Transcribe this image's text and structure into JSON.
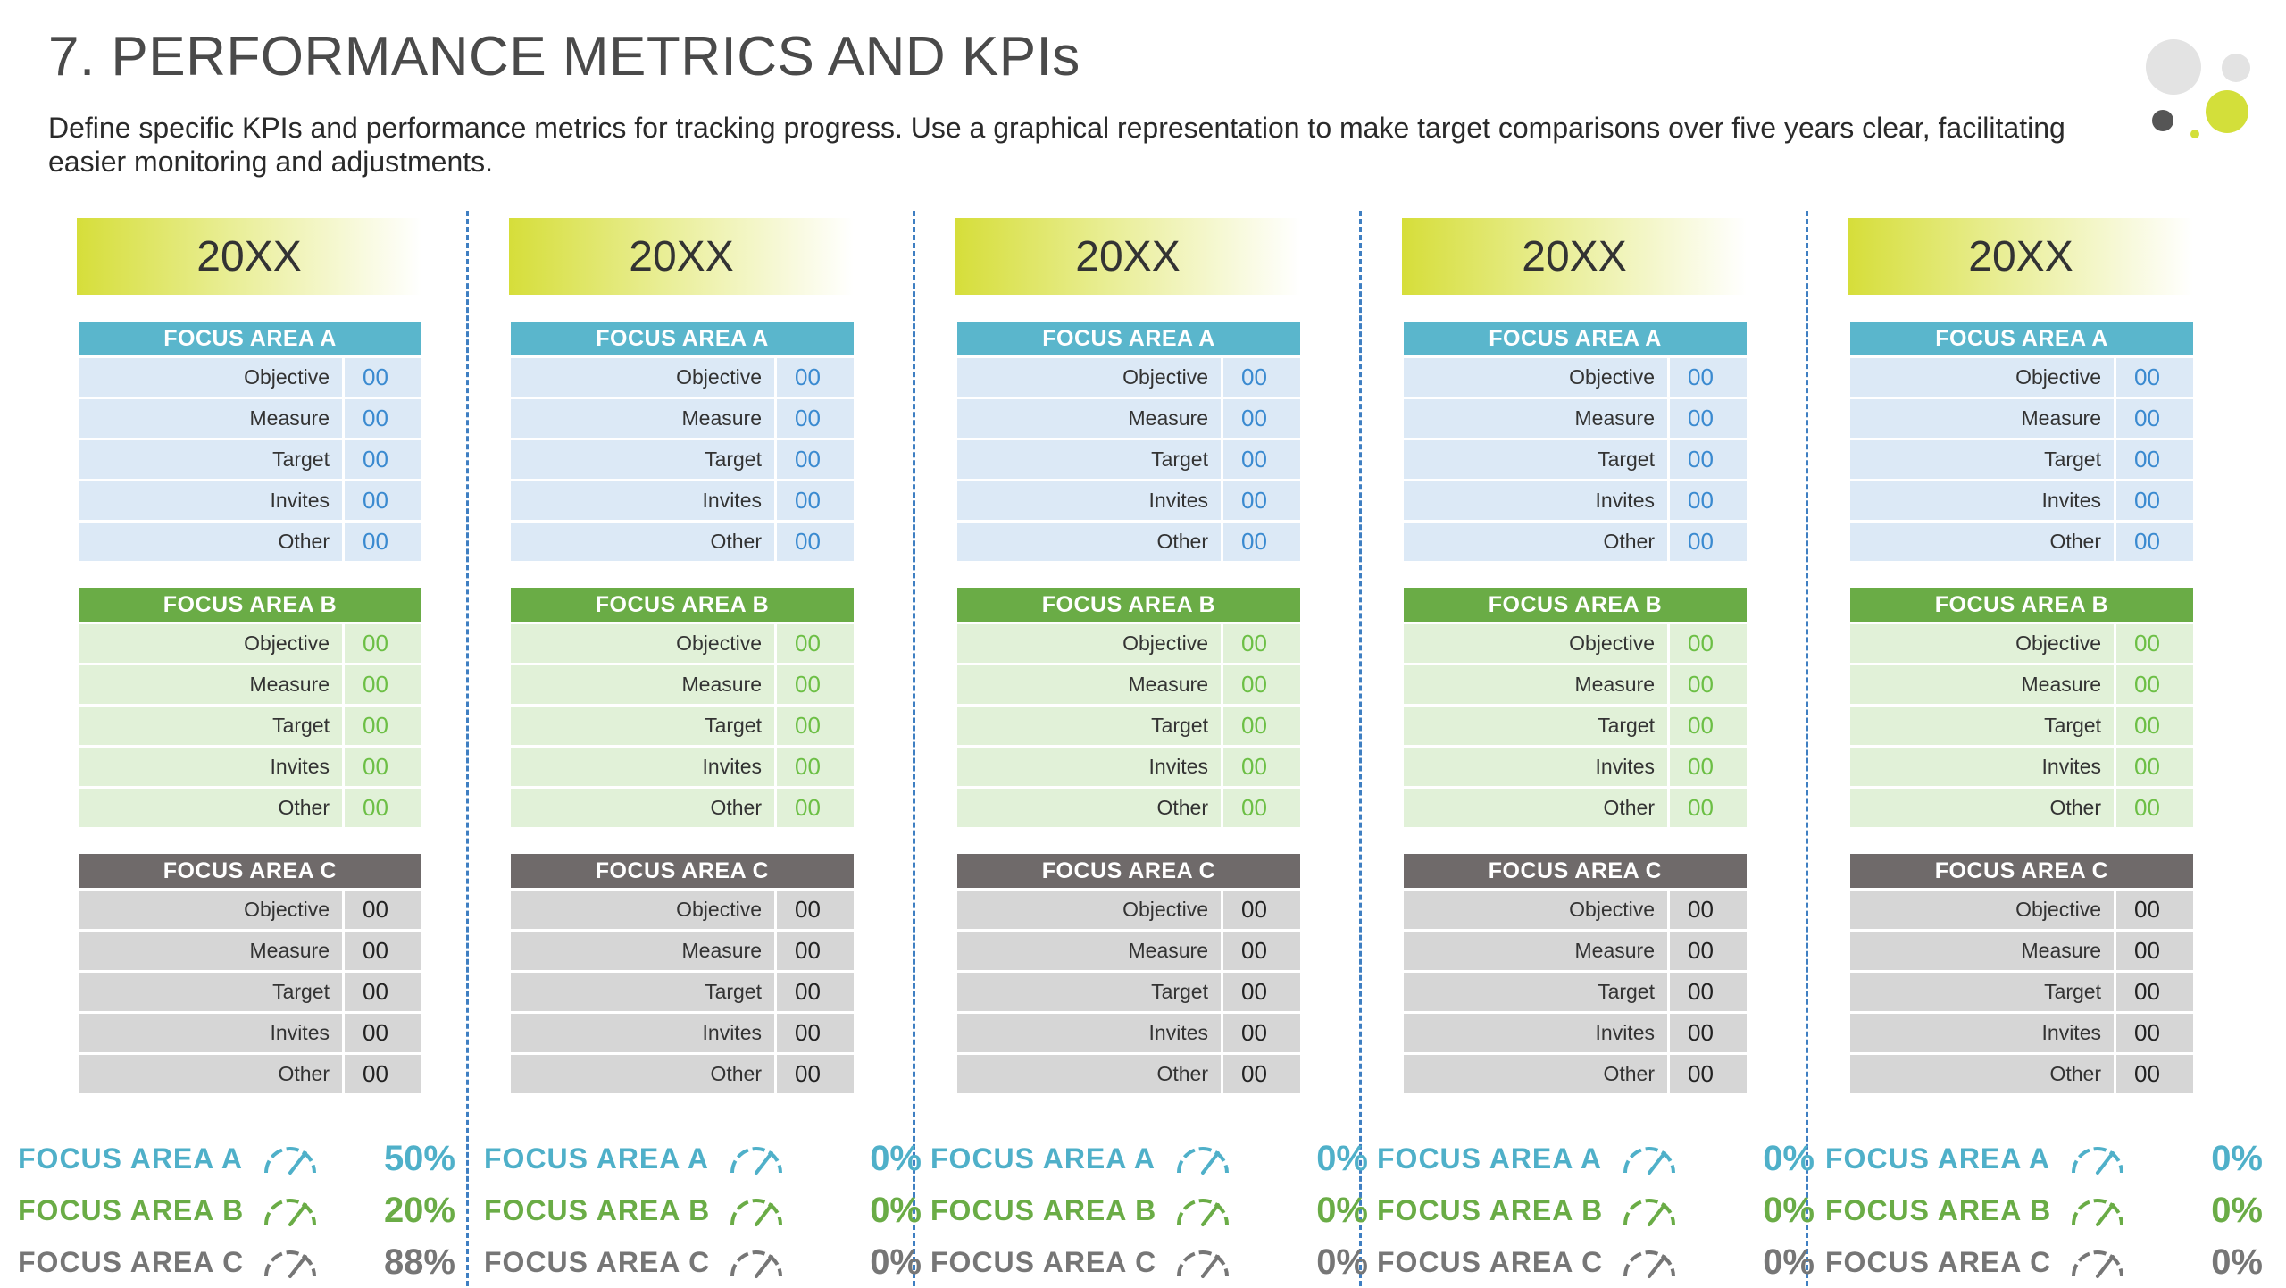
{
  "header": {
    "title": "7. PERFORMANCE METRICS AND KPIs",
    "description": "Define specific KPIs and performance metrics for tracking progress. Use a graphical representation to make target comparisons over five years clear, facilitating easier monitoring and adjustments."
  },
  "row_labels": [
    "Objective",
    "Measure",
    "Target",
    "Invites",
    "Other"
  ],
  "columns": [
    {
      "year": "20XX",
      "areas": [
        {
          "title": "FOCUS AREA A",
          "values": [
            "00",
            "00",
            "00",
            "00",
            "00"
          ]
        },
        {
          "title": "FOCUS AREA B",
          "values": [
            "00",
            "00",
            "00",
            "00",
            "00"
          ]
        },
        {
          "title": "FOCUS AREA C",
          "values": [
            "00",
            "00",
            "00",
            "00",
            "00"
          ]
        }
      ],
      "summary": [
        {
          "label": "FOCUS AREA A",
          "percent": "50%",
          "gauge_icon": "speedometer-icon"
        },
        {
          "label": "FOCUS AREA B",
          "percent": "20%",
          "gauge_icon": "speedometer-icon"
        },
        {
          "label": "FOCUS AREA C",
          "percent": "88%",
          "gauge_icon": "speedometer-icon"
        }
      ]
    },
    {
      "year": "20XX",
      "areas": [
        {
          "title": "FOCUS AREA A",
          "values": [
            "00",
            "00",
            "00",
            "00",
            "00"
          ]
        },
        {
          "title": "FOCUS AREA B",
          "values": [
            "00",
            "00",
            "00",
            "00",
            "00"
          ]
        },
        {
          "title": "FOCUS AREA C",
          "values": [
            "00",
            "00",
            "00",
            "00",
            "00"
          ]
        }
      ],
      "summary": [
        {
          "label": "FOCUS AREA A",
          "percent": "0%",
          "gauge_icon": "speedometer-icon"
        },
        {
          "label": "FOCUS AREA B",
          "percent": "0%",
          "gauge_icon": "speedometer-icon"
        },
        {
          "label": "FOCUS AREA C",
          "percent": "0%",
          "gauge_icon": "speedometer-icon"
        }
      ]
    },
    {
      "year": "20XX",
      "areas": [
        {
          "title": "FOCUS AREA A",
          "values": [
            "00",
            "00",
            "00",
            "00",
            "00"
          ]
        },
        {
          "title": "FOCUS AREA B",
          "values": [
            "00",
            "00",
            "00",
            "00",
            "00"
          ]
        },
        {
          "title": "FOCUS AREA C",
          "values": [
            "00",
            "00",
            "00",
            "00",
            "00"
          ]
        }
      ],
      "summary": [
        {
          "label": "FOCUS AREA A",
          "percent": "0%",
          "gauge_icon": "speedometer-icon"
        },
        {
          "label": "FOCUS AREA B",
          "percent": "0%",
          "gauge_icon": "speedometer-icon"
        },
        {
          "label": "FOCUS AREA C",
          "percent": "0%",
          "gauge_icon": "speedometer-icon"
        }
      ]
    },
    {
      "year": "20XX",
      "areas": [
        {
          "title": "FOCUS AREA A",
          "values": [
            "00",
            "00",
            "00",
            "00",
            "00"
          ]
        },
        {
          "title": "FOCUS AREA B",
          "values": [
            "00",
            "00",
            "00",
            "00",
            "00"
          ]
        },
        {
          "title": "FOCUS AREA C",
          "values": [
            "00",
            "00",
            "00",
            "00",
            "00"
          ]
        }
      ],
      "summary": [
        {
          "label": "FOCUS AREA A",
          "percent": "0%",
          "gauge_icon": "speedometer-icon"
        },
        {
          "label": "FOCUS AREA B",
          "percent": "0%",
          "gauge_icon": "speedometer-icon"
        },
        {
          "label": "FOCUS AREA C",
          "percent": "0%",
          "gauge_icon": "speedometer-icon"
        }
      ]
    },
    {
      "year": "20XX",
      "areas": [
        {
          "title": "FOCUS AREA A",
          "values": [
            "00",
            "00",
            "00",
            "00",
            "00"
          ]
        },
        {
          "title": "FOCUS AREA B",
          "values": [
            "00",
            "00",
            "00",
            "00",
            "00"
          ]
        },
        {
          "title": "FOCUS AREA C",
          "values": [
            "00",
            "00",
            "00",
            "00",
            "00"
          ]
        }
      ],
      "summary": [
        {
          "label": "FOCUS AREA A",
          "percent": "0%",
          "gauge_icon": "speedometer-icon"
        },
        {
          "label": "FOCUS AREA B",
          "percent": "0%",
          "gauge_icon": "speedometer-icon"
        },
        {
          "label": "FOCUS AREA C",
          "percent": "0%",
          "gauge_icon": "speedometer-icon"
        }
      ]
    }
  ],
  "colors": {
    "focus_a": "#5ab6cc",
    "focus_b": "#6aac46",
    "focus_c": "#6f6a6a",
    "year_gradient_start": "#d6de3a",
    "divider": "#3f7fc2"
  }
}
